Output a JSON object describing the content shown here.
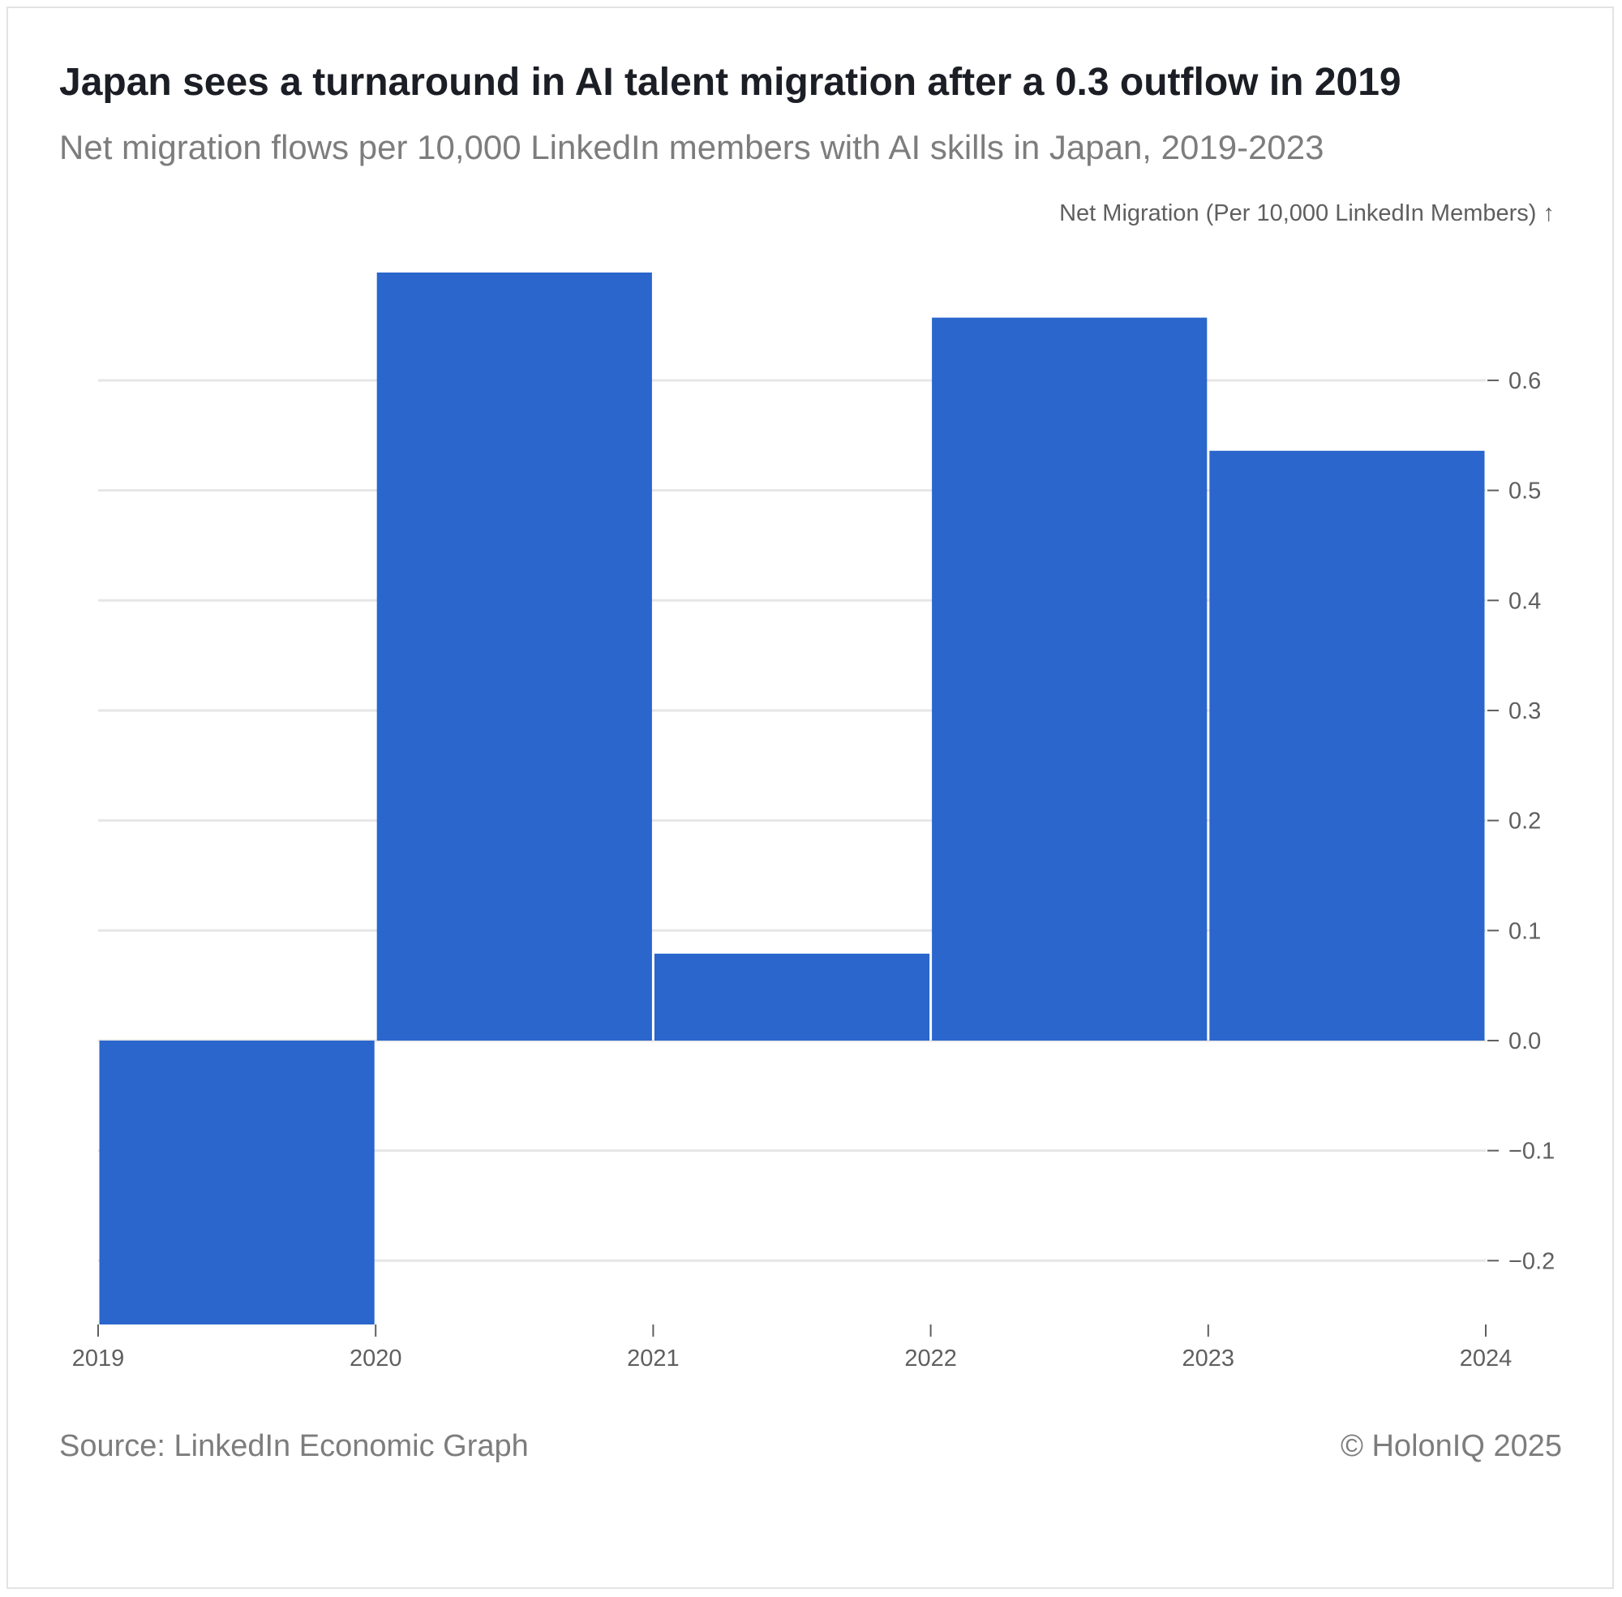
{
  "header": {
    "title": "Japan sees a turnaround in AI talent migration after a 0.3 outflow in 2019",
    "subtitle": "Net migration flows per 10,000 LinkedIn members with AI skills in Japan, 2019-2023"
  },
  "footer": {
    "source": "Source: LinkedIn Economic Graph",
    "credit": "© HolonIQ 2025"
  },
  "colors": {
    "bar": "#2a66cc",
    "grid": "#e6e6e6",
    "axis_text": "#5f5f5f"
  },
  "chart_data": {
    "type": "bar",
    "categories": [
      "2019",
      "2020",
      "2021",
      "2022",
      "2023"
    ],
    "values": [
      -0.258,
      0.698,
      0.079,
      0.657,
      0.536
    ],
    "x_edges": [
      2019,
      2020,
      2021,
      2022,
      2023,
      2024
    ],
    "x_ticks": [
      "2019",
      "2020",
      "2021",
      "2022",
      "2023",
      "2024"
    ],
    "y_ticks": [
      -0.2,
      -0.1,
      0.0,
      0.1,
      0.2,
      0.3,
      0.4,
      0.5,
      0.6
    ],
    "y_tick_labels": [
      "−0.2",
      "−0.1",
      "0.0",
      "0.1",
      "0.2",
      "0.3",
      "0.4",
      "0.5",
      "0.6"
    ],
    "ylim": [
      -0.258,
      0.698
    ],
    "ylabel": "Net Migration (Per 10,000 LinkedIn Members) ↑",
    "xlabel": "",
    "y_axis_side": "right",
    "grid": true
  }
}
